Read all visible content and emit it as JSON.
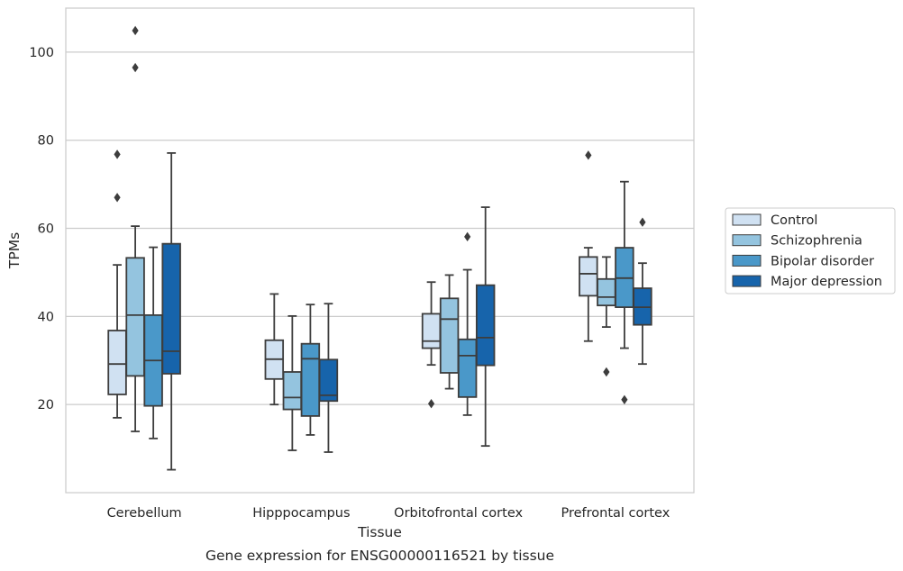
{
  "chart_data": {
    "type": "box",
    "title": "",
    "caption": "Gene expression for ENSG00000116521 by tissue",
    "xlabel": "Tissue",
    "ylabel": "TPMs",
    "ylim": [
      0,
      110
    ],
    "yticks": [
      20,
      40,
      60,
      80,
      100
    ],
    "grid": "horizontal",
    "legend_position": "right",
    "categories": [
      "Cerebellum",
      "Hipppocampus",
      "Orbitofrontal cortex",
      "Prefrontal cortex"
    ],
    "series": [
      {
        "name": "Control",
        "color": "#d0e1f2",
        "boxes": [
          {
            "whislo": 17,
            "q1": 22.3,
            "med": 29.2,
            "q3": 36.8,
            "whishi": 51.7,
            "fliers": [
              67,
              76.8
            ]
          },
          {
            "whislo": 20,
            "q1": 25.8,
            "med": 30.3,
            "q3": 34.6,
            "whishi": 45.1,
            "fliers": []
          },
          {
            "whislo": 29,
            "q1": 32.8,
            "med": 34.4,
            "q3": 40.6,
            "whishi": 47.8,
            "fliers": [
              20.2
            ]
          },
          {
            "whislo": 34.4,
            "q1": 44.7,
            "med": 49.7,
            "q3": 53.5,
            "whishi": 55.6,
            "fliers": [
              76.6
            ]
          }
        ]
      },
      {
        "name": "Schizophrenia",
        "color": "#94c4df",
        "boxes": [
          {
            "whislo": 13.9,
            "q1": 26.5,
            "med": 40.3,
            "q3": 53.3,
            "whishi": 60.5,
            "fliers": [
              96.5,
              104.9
            ]
          },
          {
            "whislo": 9.6,
            "q1": 18.9,
            "med": 21.6,
            "q3": 27.4,
            "whishi": 40.1,
            "fliers": []
          },
          {
            "whislo": 23.6,
            "q1": 27.2,
            "med": 39.4,
            "q3": 44.1,
            "whishi": 49.4,
            "fliers": []
          },
          {
            "whislo": 37.6,
            "q1": 42.5,
            "med": 44.4,
            "q3": 48.5,
            "whishi": 53.5,
            "fliers": [
              27.4
            ]
          }
        ]
      },
      {
        "name": "Bipolar disorder",
        "color": "#4a98c9",
        "boxes": [
          {
            "whislo": 12.3,
            "q1": 19.7,
            "med": 30.0,
            "q3": 40.3,
            "whishi": 55.7,
            "fliers": []
          },
          {
            "whislo": 13.1,
            "q1": 17.4,
            "med": 30.4,
            "q3": 33.8,
            "whishi": 42.7,
            "fliers": []
          },
          {
            "whislo": 17.6,
            "q1": 21.7,
            "med": 31.1,
            "q3": 34.8,
            "whishi": 50.6,
            "fliers": [
              58.1
            ]
          },
          {
            "whislo": 32.8,
            "q1": 42.1,
            "med": 48.7,
            "q3": 55.6,
            "whishi": 70.6,
            "fliers": [
              21.1
            ]
          }
        ]
      },
      {
        "name": "Major depression",
        "color": "#1764ab",
        "boxes": [
          {
            "whislo": 5.2,
            "q1": 27.0,
            "med": 32.1,
            "q3": 56.5,
            "whishi": 77.1,
            "fliers": []
          },
          {
            "whislo": 9.2,
            "q1": 20.8,
            "med": 22.1,
            "q3": 30.2,
            "whishi": 42.9,
            "fliers": []
          },
          {
            "whislo": 10.6,
            "q1": 28.9,
            "med": 35.2,
            "q3": 47.1,
            "whishi": 64.8,
            "fliers": []
          },
          {
            "whislo": 29.2,
            "q1": 38.1,
            "med": 42.1,
            "q3": 46.4,
            "whishi": 52.1,
            "fliers": [
              61.4
            ]
          }
        ]
      }
    ]
  }
}
